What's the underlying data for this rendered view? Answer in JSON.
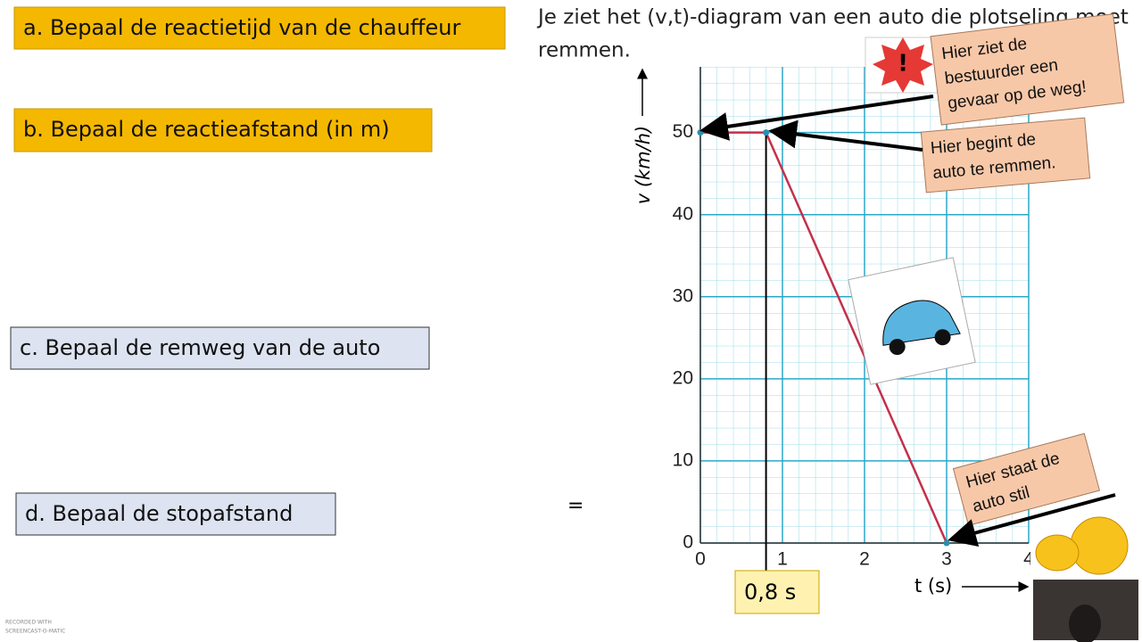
{
  "questions": [
    "a. Bepaal de reactietijd van de chauffeur",
    "b. Bepaal de reactieafstand (in m)",
    "c. Bepaal de remweg van de auto",
    "d. Bepaal de stopafstand"
  ],
  "equals": "=",
  "intro": [
    "Je ziet het (v,t)-diagram van een auto die plotseling moet",
    "remmen."
  ],
  "chart_data": {
    "type": "line",
    "x": [
      0,
      0.8,
      3
    ],
    "values": [
      50,
      50,
      0
    ],
    "color": "#c3304a",
    "xlim": [
      0,
      4
    ],
    "ylim": [
      0,
      58
    ],
    "xticks": [
      0,
      1,
      2,
      3,
      4
    ],
    "yticks": [
      0,
      10,
      20,
      30,
      40,
      50
    ],
    "x_label": "t (s)",
    "y_label": "v (km/h)",
    "grid": true
  },
  "callouts": [
    [
      "Hier ziet de",
      "bestuurder een",
      "gevaar op de weg!"
    ],
    [
      "Hier begint de",
      "auto te remmen."
    ],
    [
      "Hier staat de",
      "auto stil"
    ]
  ],
  "answer": "0,8 s",
  "watermark": [
    "RECORDED WITH",
    "SCREENCAST-O-MATIC"
  ]
}
